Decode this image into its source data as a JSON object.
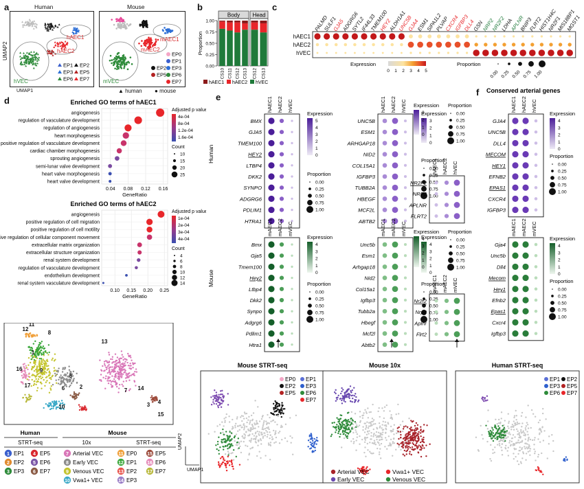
{
  "panels": {
    "a": "a",
    "b": "b",
    "c": "c",
    "d": "d",
    "e": "e",
    "f": "f",
    "g": "g"
  },
  "a": {
    "human_title": "Human",
    "mouse_title": "Mouse",
    "umap1": "UMAP1",
    "umap2": "UMAP2",
    "human_labels": [
      "hAEC1",
      "hAEC2",
      "hVEC"
    ],
    "mouse_labels": [
      "mAEC1",
      "mAEC2",
      "mVEC"
    ],
    "human_legend": [
      "EP1",
      "EP2",
      "EP3",
      "EP5",
      "EP6",
      "EP7"
    ],
    "mouse_legend": [
      "EP0",
      "EP1",
      "EP2",
      "EP3",
      "EP5",
      "EP6",
      "EP7"
    ],
    "shape_legend": [
      "human",
      "mouse"
    ],
    "colors": {
      "EP0": "#f4a6c6",
      "EP1": "#3a5fcd",
      "EP2": "#111111",
      "EP3": "#2e6fd6",
      "EP5": "#b22222",
      "EP6": "#2e8b3a",
      "EP7": "#e8262a",
      "grey": "#bdbdbd"
    }
  },
  "b": {
    "facets": [
      "Body",
      "Head"
    ],
    "ylabel": "Proportion",
    "yticks": [
      "0.00",
      "0.25",
      "0.50",
      "0.75",
      "1.00"
    ],
    "legend": [
      "hAEC1",
      "hAEC2",
      "hVEC"
    ],
    "colors": {
      "hAEC1": "#8b1a1a",
      "hAEC2": "#e8262a",
      "hVEC": "#1f7a3a"
    }
  },
  "chart_data": [
    {
      "type": "bar",
      "title": "Body",
      "categories": [
        "CS10",
        "CS11",
        "CS12",
        "CS13"
      ],
      "ylabel": "Proportion",
      "ylim": [
        0,
        1
      ],
      "series": [
        {
          "name": "hVEC",
          "values": [
            0.82,
            0.78,
            0.74,
            0.8
          ]
        },
        {
          "name": "hAEC2",
          "values": [
            0.16,
            0.18,
            0.22,
            0.14
          ]
        },
        {
          "name": "hAEC1",
          "values": [
            0.02,
            0.04,
            0.04,
            0.06
          ]
        }
      ]
    },
    {
      "type": "bar",
      "title": "Head",
      "categories": [
        "CS12",
        "CS13"
      ],
      "ylabel": "Proportion",
      "ylim": [
        0,
        1
      ],
      "series": [
        {
          "name": "hVEC",
          "values": [
            0.8,
            0.74
          ]
        },
        {
          "name": "hAEC2",
          "values": [
            0.16,
            0.2
          ]
        },
        {
          "name": "hAEC1",
          "values": [
            0.04,
            0.06
          ]
        }
      ]
    },
    {
      "type": "scatter",
      "title": "Enriched GO terms of hAEC1",
      "xlabel": "GeneRatio",
      "xticks": [
        "0.04",
        "0.08",
        "0.12",
        "0.16"
      ],
      "xlim": [
        0.02,
        0.17
      ],
      "categories": [
        "angiogenesis",
        "regulation of vasculature development",
        "regulation of angiogenesis",
        "heart morphogenesis",
        "positive regulation of vasculature development",
        "cardiac chamber morphogenesis",
        "sprouting angiogenesis",
        "semi-lunar valve development",
        "heart valve morphogenesis",
        "heart valve development"
      ],
      "x": [
        0.153,
        0.103,
        0.08,
        0.075,
        0.07,
        0.06,
        0.055,
        0.039,
        0.039,
        0.039
      ],
      "legend_title_padj": "Adjusted p value",
      "padj_ticks": [
        "4e-04",
        "8e-04",
        "1.2e-04",
        "1.6e-04"
      ],
      "legend_title_count": "Count",
      "count_ticks": [
        "10",
        "15",
        "20",
        "25"
      ]
    },
    {
      "type": "scatter",
      "title": "Enriched GO terms of hAEC2",
      "xlabel": "GeneRatio",
      "xticks": [
        "0.10",
        "0.15",
        "0.20",
        "0.25"
      ],
      "xlim": [
        0.06,
        0.26
      ],
      "categories": [
        "angiogenesis",
        "positive regulation of cell migration",
        "positive regulation of cell motility",
        "positive regulation of cellular component movement",
        "extracellular matrix organization",
        "extracellular structure organization",
        "renal system development",
        "regulation of vasculature development",
        "endothelium development",
        "renal system vasculature development"
      ],
      "x": [
        0.24,
        0.205,
        0.205,
        0.205,
        0.175,
        0.175,
        0.172,
        0.165,
        0.135,
        0.065
      ],
      "legend_title_padj": "Adjusted p value",
      "padj_ticks": [
        "1e-04",
        "2e-04",
        "3e-04",
        "4e-04"
      ],
      "legend_title_count": "Count",
      "count_ticks": [
        "4",
        "6",
        "8",
        "10",
        "12",
        "14"
      ]
    }
  ],
  "c": {
    "genes": [
      "PALMD",
      "SULF1",
      "GJA5",
      "ADGRG6",
      "SYTL2",
      "IF44L33",
      "TMEM100",
      "HEY2",
      "ALDH1A1",
      "UNC5B",
      "GJA4",
      "ESM1",
      "SIPA1L2",
      "PLVAP",
      "CXCR4",
      "IGFBP3",
      "DLL4",
      "GSN",
      "NRP2",
      "NR2F2",
      "LDHA",
      "APLNR",
      "BNIP3",
      "FLRT2",
      "HIST1H4C",
      "NR2F1",
      "MIS18BP1",
      "MGST1"
    ],
    "gene_colors": [
      "#111",
      "#111",
      "#e8262a",
      "#111",
      "#111",
      "#111",
      "#111",
      "#e8262a",
      "#111",
      "#e8262a",
      "#e8262a",
      "#111",
      "#111",
      "#111",
      "#e8262a",
      "#e8262a",
      "#e8262a",
      "#111",
      "#1f7a3a",
      "#1f7a3a",
      "#111",
      "#1f7a3a",
      "#111",
      "#111",
      "#111",
      "#111",
      "#111",
      "#111"
    ],
    "rows": [
      "hAEC1",
      "hAEC2",
      "hVEC"
    ],
    "expression_title": "Expression",
    "expression_ticks": [
      "0",
      "1",
      "2",
      "3",
      "4",
      "5"
    ],
    "proportion_title": "Proportion",
    "proportion_ticks": [
      "0.00",
      "0.25",
      "0.50",
      "0.75",
      "1.00"
    ]
  },
  "d": {
    "title1": "Enriched GO terms of hAEC1",
    "title2": "Enriched GO terms of hAEC2"
  },
  "e": {
    "human": "Human",
    "mouse": "Mouse",
    "col_human": [
      "hAEC1",
      "hAEC2",
      "hVEC"
    ],
    "col_mouse": [
      "mAEC1",
      "mAEC2",
      "mVEC"
    ],
    "human_genes_1": [
      "BMX",
      "GJA5",
      "TMEM100",
      "HEY2",
      "LTBP4",
      "DKK2",
      "SYNPO",
      "ADGRG6",
      "PDLIM1",
      "HTRA1"
    ],
    "human_genes_2": [
      "UNC5B",
      "ESM1",
      "ARHGAP18",
      "NID2",
      "COL15A1",
      "IGFBP3",
      "TUBB2A",
      "HBEGF",
      "MCF2L",
      "ABTB2"
    ],
    "human_genes_3": [
      "NR2F2",
      "NRP2",
      "APLNR",
      "FLRT2"
    ],
    "mouse_genes_1": [
      "Bmx",
      "Gja5",
      "Tmem100",
      "Hey2",
      "Ltbp4",
      "Dkk2",
      "Synpo",
      "Adgrg6",
      "Pdlim1",
      "Htra1"
    ],
    "mouse_genes_2": [
      "Unc5b",
      "Esm1",
      "Arhgap18",
      "Nid2",
      "Col15a1",
      "Igfbp3",
      "Tubb2a",
      "Hbegf",
      "Mcf2l",
      "Abtb2"
    ],
    "mouse_genes_3": [
      "Nr2f2",
      "Nrp2",
      "Aplnr",
      "Flrt2"
    ],
    "expression": "Expression",
    "proportion": "Proportion",
    "h_expr_ticks_1": [
      "5",
      "4",
      "3",
      "2",
      "1",
      "0"
    ],
    "h_expr_ticks_2": [
      "3",
      "2",
      "1",
      "0"
    ],
    "h_expr_ticks_3": [
      "3",
      "2",
      "1",
      "0"
    ],
    "m_expr_ticks": [
      "4",
      "3",
      "2",
      "1",
      "0"
    ],
    "prop_ticks": [
      "0.00",
      "0.25",
      "0.50",
      "0.75",
      "1.00"
    ]
  },
  "f": {
    "title": "Conserved arterial genes",
    "col_human": [
      "hAEC1",
      "hAEC2",
      "hVEC"
    ],
    "col_mouse": [
      "mAEC1",
      "mAEC2",
      "mVEC"
    ],
    "human_genes": [
      "GJA4",
      "UNC5B",
      "DLL4",
      "MECOM",
      "HEY1",
      "EFNB2",
      "EPAS1",
      "CXCR4",
      "IGFBP3"
    ],
    "mouse_genes": [
      "Gja4",
      "Unc5b",
      "Dll4",
      "Mecom",
      "Hey1",
      "Efnb2",
      "Epas1",
      "Cxcr4",
      "Igfbp3"
    ],
    "expression": "Expression",
    "proportion": "Proportion",
    "h_expr_ticks": [
      "4",
      "3",
      "2",
      "1",
      "0"
    ],
    "m_expr_ticks": [
      "4",
      "3",
      "2",
      "1",
      "0"
    ],
    "prop_ticks": [
      "0.00",
      "0.25",
      "0.50",
      "0.75",
      "1.00"
    ]
  },
  "g": {
    "legend_headers": [
      "Human",
      "Mouse"
    ],
    "sub_headers": [
      "STRT-seq",
      "10x",
      "STRT-seq"
    ],
    "human_items": [
      {
        "n": "1",
        "label": "EP1",
        "color": "#3a5fcd"
      },
      {
        "n": "2",
        "label": "EP2",
        "color": "#e08a2e"
      },
      {
        "n": "3",
        "label": "EP3",
        "color": "#2e8b3a"
      },
      {
        "n": "4",
        "label": "EP5",
        "color": "#d9282f"
      },
      {
        "n": "5",
        "label": "EP6",
        "color": "#7b56a6"
      },
      {
        "n": "6",
        "label": "EP7",
        "color": "#8a5a44"
      }
    ],
    "mouse10x_items": [
      {
        "n": "7",
        "label": "Arterial VEC",
        "color": "#d977b8"
      },
      {
        "n": "8",
        "label": "Early VEC",
        "color": "#8c8c8c"
      },
      {
        "n": "9",
        "label": "Venous VEC",
        "color": "#c4c42f"
      },
      {
        "n": "10",
        "label": "Vwa1+ VEC",
        "color": "#3aa9c7"
      }
    ],
    "mousestrt_items": [
      {
        "n": "11",
        "label": "EP0",
        "color": "#f0a03a"
      },
      {
        "n": "12",
        "label": "EP1",
        "color": "#3aa73a"
      },
      {
        "n": "13",
        "label": "EP2",
        "color": "#e8524a"
      },
      {
        "n": "14",
        "label": "EP3",
        "color": "#9b7fc7"
      },
      {
        "n": "15",
        "label": "EP5",
        "color": "#9c4a3a"
      },
      {
        "n": "16",
        "label": "EP6",
        "color": "#e58ab8"
      },
      {
        "n": "17",
        "label": "EP7",
        "color": "#b8b83a"
      }
    ],
    "umap_titles": [
      "Mouse STRT-seq",
      "Mouse 10x",
      "Human STRT-seq"
    ],
    "mouse_strt_legend": [
      "EP0",
      "EP1",
      "EP2",
      "EP3",
      "EP5",
      "EP6",
      "EP7"
    ],
    "mouse_10x_legend": [
      "Arterial VEC",
      "Vwa1+ VEC",
      "Early VEC",
      "Venous VEC"
    ],
    "human_strt_legend": [
      "EP1",
      "EP2",
      "EP3",
      "EP5",
      "EP6",
      "EP7"
    ],
    "umap1": "UMAP1",
    "umap2": "UMAP2"
  }
}
